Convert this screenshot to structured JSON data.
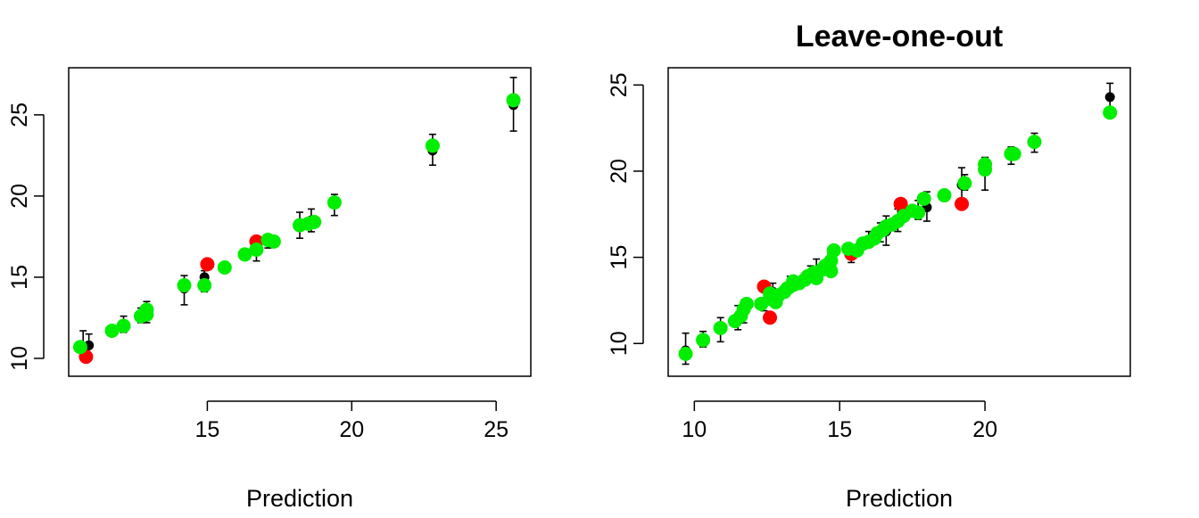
{
  "colors": {
    "black": "#000000",
    "red": "#ff0000",
    "green": "#00ee00"
  },
  "chart_data": [
    {
      "type": "scatter",
      "title": "",
      "xlabel": "Prediction",
      "ylabel": "",
      "xlim": [
        10.2,
        26.2
      ],
      "ylim": [
        8.9,
        27.9
      ],
      "xticks": [
        15,
        20,
        25
      ],
      "yticks": [
        10,
        15,
        20,
        25
      ],
      "grid": false,
      "errorbars": [
        {
          "x": 10.7,
          "lo": 10.2,
          "hi": 11.7
        },
        {
          "x": 10.9,
          "lo": 10.0,
          "hi": 11.5
        },
        {
          "x": 11.7,
          "lo": 11.4,
          "hi": 12.0
        },
        {
          "x": 12.1,
          "lo": 11.6,
          "hi": 12.6
        },
        {
          "x": 12.7,
          "lo": 12.2,
          "hi": 13.1
        },
        {
          "x": 12.9,
          "lo": 12.2,
          "hi": 13.5
        },
        {
          "x": 14.2,
          "lo": 13.3,
          "hi": 15.1
        },
        {
          "x": 14.9,
          "lo": 14.1,
          "hi": 15.4
        },
        {
          "x": 16.7,
          "lo": 16.0,
          "hi": 17.4
        },
        {
          "x": 17.1,
          "lo": 16.8,
          "hi": 17.6
        },
        {
          "x": 18.2,
          "lo": 17.4,
          "hi": 19.0
        },
        {
          "x": 18.6,
          "lo": 17.8,
          "hi": 19.2
        },
        {
          "x": 19.4,
          "lo": 18.8,
          "hi": 20.1
        },
        {
          "x": 22.8,
          "lo": 21.9,
          "hi": 23.8
        },
        {
          "x": 25.6,
          "lo": 24.0,
          "hi": 27.3
        }
      ],
      "series": [
        {
          "color": "black",
          "points": [
            [
              10.9,
              10.8
            ],
            [
              14.2,
              14.3
            ],
            [
              14.9,
              15.0
            ],
            [
              16.7,
              16.6
            ],
            [
              18.6,
              18.5
            ],
            [
              22.8,
              22.8
            ],
            [
              25.6,
              25.6
            ]
          ]
        },
        {
          "color": "red",
          "points": [
            [
              10.8,
              10.1
            ],
            [
              15.0,
              15.8
            ],
            [
              16.7,
              17.2
            ]
          ]
        },
        {
          "color": "green",
          "points": [
            [
              10.6,
              10.7
            ],
            [
              11.7,
              11.7
            ],
            [
              12.1,
              12.0
            ],
            [
              12.7,
              12.6
            ],
            [
              12.9,
              13.0
            ],
            [
              12.9,
              12.7
            ],
            [
              14.2,
              14.5
            ],
            [
              14.9,
              14.5
            ],
            [
              15.6,
              15.6
            ],
            [
              16.3,
              16.4
            ],
            [
              16.7,
              16.7
            ],
            [
              17.1,
              17.3
            ],
            [
              17.3,
              17.2
            ],
            [
              18.2,
              18.2
            ],
            [
              18.5,
              18.3
            ],
            [
              18.7,
              18.4
            ],
            [
              19.4,
              19.6
            ],
            [
              22.8,
              23.1
            ],
            [
              25.6,
              25.9
            ]
          ]
        }
      ]
    },
    {
      "type": "scatter",
      "title": "Leave-one-out",
      "xlabel": "Prediction",
      "ylabel": "",
      "xlim": [
        9.1,
        25.0
      ],
      "ylim": [
        8.1,
        26.0
      ],
      "xticks": [
        10,
        15,
        20
      ],
      "yticks": [
        10,
        15,
        20,
        25
      ],
      "grid": false,
      "errorbars": [
        {
          "x": 9.7,
          "lo": 8.8,
          "hi": 10.6
        },
        {
          "x": 10.3,
          "lo": 9.8,
          "hi": 10.7
        },
        {
          "x": 10.9,
          "lo": 10.1,
          "hi": 11.5
        },
        {
          "x": 11.5,
          "lo": 10.8,
          "hi": 12.2
        },
        {
          "x": 11.7,
          "lo": 11.2,
          "hi": 12.4
        },
        {
          "x": 12.4,
          "lo": 11.9,
          "hi": 13.4
        },
        {
          "x": 12.7,
          "lo": 12.3,
          "hi": 13.5
        },
        {
          "x": 13.3,
          "lo": 13.0,
          "hi": 13.9
        },
        {
          "x": 14.0,
          "lo": 13.6,
          "hi": 14.5
        },
        {
          "x": 14.2,
          "lo": 13.7,
          "hi": 14.9
        },
        {
          "x": 14.7,
          "lo": 14.0,
          "hi": 15.2
        },
        {
          "x": 15.4,
          "lo": 14.7,
          "hi": 15.7
        },
        {
          "x": 16.0,
          "lo": 15.6,
          "hi": 16.5
        },
        {
          "x": 16.4,
          "lo": 15.9,
          "hi": 17.0
        },
        {
          "x": 16.6,
          "lo": 15.7,
          "hi": 17.4
        },
        {
          "x": 17.0,
          "lo": 16.5,
          "hi": 17.8
        },
        {
          "x": 17.7,
          "lo": 17.2,
          "hi": 18.3
        },
        {
          "x": 18.0,
          "lo": 17.1,
          "hi": 18.8
        },
        {
          "x": 19.2,
          "lo": 18.2,
          "hi": 20.2
        },
        {
          "x": 19.3,
          "lo": 18.9,
          "hi": 19.8
        },
        {
          "x": 20.0,
          "lo": 18.9,
          "hi": 20.8
        },
        {
          "x": 20.9,
          "lo": 20.4,
          "hi": 21.4
        },
        {
          "x": 21.7,
          "lo": 21.1,
          "hi": 22.2
        },
        {
          "x": 24.3,
          "lo": 23.4,
          "hi": 25.1
        }
      ],
      "series": [
        {
          "color": "black",
          "points": [
            [
              9.7,
              9.6
            ],
            [
              12.7,
              13.0
            ],
            [
              14.2,
              14.2
            ],
            [
              16.6,
              16.5
            ],
            [
              17.1,
              17.2
            ],
            [
              18.0,
              17.9
            ],
            [
              19.2,
              19.2
            ],
            [
              24.3,
              24.3
            ]
          ]
        },
        {
          "color": "red",
          "points": [
            [
              12.4,
              13.3
            ],
            [
              12.6,
              11.5
            ],
            [
              15.4,
              15.2
            ],
            [
              17.1,
              18.1
            ],
            [
              19.2,
              18.1
            ]
          ]
        },
        {
          "color": "green",
          "points": [
            [
              9.7,
              9.4
            ],
            [
              10.3,
              10.2
            ],
            [
              10.9,
              10.9
            ],
            [
              11.4,
              11.3
            ],
            [
              11.6,
              11.6
            ],
            [
              11.7,
              12.0
            ],
            [
              11.8,
              12.3
            ],
            [
              12.3,
              12.3
            ],
            [
              12.6,
              12.6
            ],
            [
              12.6,
              12.9
            ],
            [
              12.8,
              12.4
            ],
            [
              12.9,
              12.8
            ],
            [
              13.1,
              13.0
            ],
            [
              13.2,
              13.2
            ],
            [
              13.4,
              13.4
            ],
            [
              13.4,
              13.6
            ],
            [
              13.6,
              13.5
            ],
            [
              13.8,
              13.7
            ],
            [
              13.9,
              13.9
            ],
            [
              14.1,
              14.1
            ],
            [
              14.2,
              13.8
            ],
            [
              14.4,
              14.3
            ],
            [
              14.5,
              14.5
            ],
            [
              14.7,
              14.2
            ],
            [
              14.7,
              14.8
            ],
            [
              14.8,
              15.4
            ],
            [
              15.3,
              15.5
            ],
            [
              15.6,
              15.4
            ],
            [
              15.8,
              15.8
            ],
            [
              16.0,
              15.9
            ],
            [
              16.2,
              16.1
            ],
            [
              16.3,
              16.4
            ],
            [
              16.5,
              16.6
            ],
            [
              16.6,
              16.8
            ],
            [
              16.8,
              16.9
            ],
            [
              17.0,
              17.1
            ],
            [
              17.2,
              17.4
            ],
            [
              17.5,
              17.7
            ],
            [
              17.7,
              17.6
            ],
            [
              17.9,
              18.4
            ],
            [
              18.6,
              18.6
            ],
            [
              19.3,
              19.3
            ],
            [
              20.0,
              20.1
            ],
            [
              20.0,
              20.4
            ],
            [
              20.9,
              21.0
            ],
            [
              21.0,
              21.0
            ],
            [
              21.7,
              21.7
            ],
            [
              24.3,
              23.4
            ]
          ]
        }
      ]
    }
  ]
}
